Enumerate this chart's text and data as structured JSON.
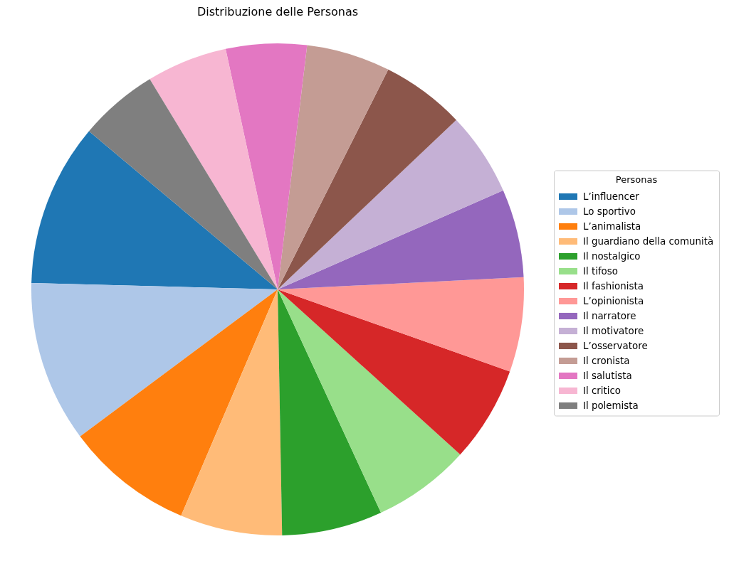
{
  "chart_data": {
    "type": "pie",
    "title": "Distribuzione delle Personas",
    "legend_title": "Personas",
    "legend": "right",
    "categories": [
      "L’influencer",
      "Lo sportivo",
      "L’animalista",
      "Il guardiano della comunità",
      "Il nostalgico",
      "Il tifoso",
      "Il fashionista",
      "L’opinionista",
      "Il narratore",
      "Il motivatore",
      "L’osservatore",
      "Il cronista",
      "Il salutista",
      "Il critico",
      "Il polemista"
    ],
    "values": [
      10.7,
      10.6,
      8.4,
      6.7,
      6.6,
      6.4,
      6.3,
      6.2,
      5.8,
      5.5,
      5.5,
      5.5,
      5.3,
      5.3,
      5.2
    ],
    "colors": [
      "#1f77b4",
      "#aec7e8",
      "#ff7f0e",
      "#ffbb78",
      "#2ca02c",
      "#98df8a",
      "#d62728",
      "#ff9896",
      "#9467bd",
      "#c5b0d5",
      "#8c564b",
      "#c49c94",
      "#e377c2",
      "#f7b6d2",
      "#7f7f7f"
    ]
  }
}
